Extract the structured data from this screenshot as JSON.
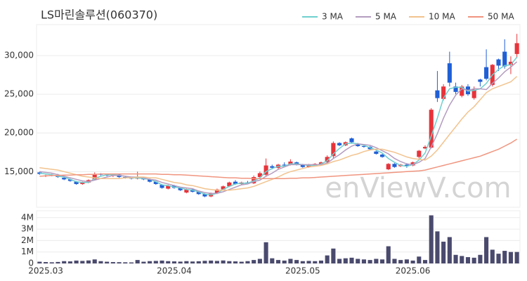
{
  "chart_data": {
    "type": "candlestick",
    "title": "LS마린솔루션(060370)",
    "watermark": "enViewV.com",
    "up_color": "#e8333a",
    "down_color": "#1f5fd6",
    "volume_color": "#4a4a6e",
    "grid": true,
    "legend": "top-right",
    "categories": [
      null,
      "2025.03",
      null,
      null,
      null,
      null,
      null,
      null,
      null,
      null,
      null,
      null,
      null,
      null,
      null,
      null,
      null,
      null,
      null,
      null,
      null,
      null,
      "2025.04",
      null,
      null,
      null,
      null,
      null,
      null,
      null,
      null,
      null,
      null,
      null,
      null,
      null,
      null,
      null,
      null,
      null,
      null,
      null,
      null,
      "2025.05",
      null,
      null,
      null,
      null,
      null,
      null,
      null,
      null,
      null,
      null,
      null,
      null,
      null,
      null,
      null,
      null,
      null,
      "2025.06",
      null,
      null,
      null,
      null,
      null,
      null,
      null,
      null,
      null,
      null,
      null,
      null,
      null,
      null,
      null,
      null,
      null
    ],
    "open": [
      14900,
      14400,
      14600,
      14500,
      14200,
      14000,
      13700,
      13400,
      13600,
      14000,
      14700,
      14600,
      14500,
      14600,
      14300,
      14200,
      14100,
      14200,
      14000,
      13700,
      13300,
      12800,
      13200,
      12900,
      12300,
      12700,
      12400,
      12100,
      11800,
      12200,
      12700,
      13100,
      13700,
      13400,
      13600,
      13500,
      14300,
      14600,
      15700,
      15500,
      15900,
      15900,
      16200,
      15900,
      15600,
      15900,
      16000,
      16200,
      17000,
      18700,
      18400,
      19300,
      18600,
      18300,
      18200,
      17600,
      17200,
      15300,
      16000,
      15700,
      15900,
      15800,
      16900,
      18000,
      18100,
      25500,
      24400,
      29000,
      26000,
      24800,
      26000,
      24500,
      26900,
      28500,
      26200,
      29500,
      30500,
      28800,
      30200
    ],
    "high": [
      15000,
      14600,
      14700,
      14700,
      14300,
      14100,
      13800,
      13700,
      14000,
      14900,
      14800,
      14700,
      14700,
      14700,
      14400,
      14300,
      15000,
      14300,
      14100,
      13800,
      13400,
      13300,
      13300,
      13000,
      12800,
      12800,
      12500,
      12200,
      12300,
      12800,
      13200,
      13700,
      13900,
      13700,
      13800,
      14500,
      15000,
      16700,
      15900,
      16000,
      16200,
      16600,
      16300,
      16000,
      16000,
      16100,
      16300,
      17100,
      18900,
      18800,
      18900,
      19400,
      18700,
      18500,
      18300,
      17700,
      17300,
      16100,
      16100,
      16000,
      16100,
      16300,
      17800,
      18400,
      23200,
      28000,
      26300,
      30500,
      26500,
      26200,
      26300,
      26000,
      27000,
      30800,
      28900,
      29600,
      32100,
      29900,
      32800
    ],
    "low": [
      14600,
      14300,
      14400,
      14200,
      13900,
      13700,
      13300,
      13300,
      13500,
      13900,
      14500,
      14400,
      14300,
      14200,
      14100,
      14000,
      14000,
      13900,
      13600,
      13300,
      12800,
      12700,
      12800,
      12500,
      12200,
      12300,
      12000,
      11700,
      11700,
      12100,
      12600,
      13000,
      13300,
      13300,
      13400,
      13400,
      14100,
      14400,
      15300,
      15300,
      15700,
      15800,
      15800,
      15500,
      15500,
      15700,
      15900,
      16000,
      16700,
      18300,
      18300,
      18600,
      18200,
      18100,
      17800,
      17200,
      16800,
      15200,
      15500,
      15600,
      15500,
      15700,
      16700,
      17900,
      18000,
      24000,
      24200,
      26000,
      25000,
      24600,
      24800,
      24300,
      26000,
      26800,
      26000,
      28000,
      28300,
      27600,
      29700
    ],
    "close": [
      14700,
      14500,
      14500,
      14300,
      14000,
      13800,
      13400,
      13600,
      13900,
      14700,
      14600,
      14500,
      14600,
      14300,
      14200,
      14100,
      14200,
      14000,
      13700,
      13400,
      12900,
      13200,
      12900,
      12600,
      12700,
      12400,
      12100,
      11800,
      12200,
      12700,
      13100,
      13600,
      13400,
      13600,
      13500,
      14300,
      14800,
      15800,
      15500,
      15900,
      15800,
      16300,
      15900,
      15600,
      15900,
      16000,
      16200,
      16900,
      18700,
      18400,
      18800,
      18800,
      18300,
      18200,
      17900,
      17300,
      16900,
      16000,
      15600,
      15900,
      15700,
      16200,
      17700,
      18200,
      23000,
      24500,
      26000,
      26500,
      25300,
      26000,
      25000,
      25600,
      26600,
      27000,
      28800,
      28700,
      28600,
      29200,
      31600
    ],
    "volume": [
      150000,
      120000,
      100000,
      130000,
      200000,
      180000,
      250000,
      220000,
      260000,
      350000,
      200000,
      150000,
      120000,
      110000,
      100000,
      90000,
      300000,
      150000,
      200000,
      220000,
      250000,
      200000,
      180000,
      160000,
      200000,
      170000,
      190000,
      230000,
      250000,
      220000,
      260000,
      200000,
      180000,
      150000,
      200000,
      300000,
      400000,
      1850000,
      450000,
      300000,
      250000,
      400000,
      300000,
      200000,
      220000,
      200000,
      250000,
      700000,
      1300000,
      400000,
      450000,
      500000,
      400000,
      350000,
      300000,
      400000,
      350000,
      1500000,
      400000,
      300000,
      350000,
      250000,
      600000,
      300000,
      4200000,
      2800000,
      1900000,
      2300000,
      750000,
      650000,
      550000,
      500000,
      750000,
      2300000,
      1200000,
      850000,
      1100000,
      1000000,
      1000000
    ],
    "series": [
      {
        "name": "3 MA",
        "color": "#6fcfcf",
        "values": [
          14800,
          14700,
          14600,
          14400,
          14300,
          14000,
          13700,
          13600,
          13600,
          14100,
          14400,
          14600,
          14600,
          14500,
          14400,
          14200,
          14200,
          14100,
          14000,
          13700,
          13300,
          13200,
          13000,
          12900,
          12700,
          12600,
          12400,
          12100,
          12000,
          12200,
          12700,
          13100,
          13400,
          13500,
          13500,
          13800,
          14200,
          15000,
          15400,
          15700,
          15700,
          16000,
          16000,
          15900,
          15800,
          15800,
          16000,
          16400,
          17300,
          18000,
          18600,
          18700,
          18600,
          18400,
          18100,
          17800,
          17400,
          16700,
          16200,
          15800,
          15700,
          15900,
          16500,
          17400,
          19600,
          21900,
          24500,
          25700,
          25900,
          25900,
          25400,
          25500,
          25700,
          26400,
          27500,
          28200,
          28700,
          28800,
          29800
        ]
      },
      {
        "name": "5 MA",
        "color": "#b49cc0",
        "values": [
          15000,
          14900,
          14800,
          14600,
          14400,
          14200,
          14000,
          13800,
          13700,
          13900,
          14100,
          14300,
          14500,
          14500,
          14400,
          14300,
          14300,
          14200,
          14000,
          13900,
          13600,
          13400,
          13200,
          13000,
          12900,
          12800,
          12500,
          12300,
          12200,
          12200,
          12400,
          12700,
          13000,
          13300,
          13400,
          13700,
          13900,
          14400,
          14800,
          15300,
          15600,
          15900,
          15900,
          15900,
          15900,
          15900,
          15900,
          16100,
          16700,
          17200,
          17800,
          18300,
          18600,
          18500,
          18400,
          18100,
          17700,
          17300,
          16700,
          16300,
          16000,
          15900,
          16200,
          16700,
          18200,
          19900,
          21900,
          23600,
          24900,
          25700,
          25500,
          25700,
          25700,
          25600,
          26400,
          27100,
          27900,
          28500,
          29200
        ]
      },
      {
        "name": "10 MA",
        "color": "#f2c38e",
        "values": [
          15500,
          15400,
          15300,
          15200,
          15000,
          14800,
          14600,
          14400,
          14300,
          14200,
          14100,
          14100,
          14100,
          14100,
          14200,
          14200,
          14300,
          14300,
          14200,
          14200,
          14000,
          13800,
          13600,
          13500,
          13300,
          13200,
          13000,
          12800,
          12700,
          12600,
          12600,
          12600,
          12700,
          12800,
          12900,
          13100,
          13400,
          13700,
          14000,
          14300,
          14700,
          15000,
          15200,
          15400,
          15600,
          15700,
          15800,
          16000,
          16300,
          16500,
          16800,
          17100,
          17300,
          17600,
          17800,
          17900,
          17900,
          17700,
          17500,
          17200,
          16900,
          16700,
          16600,
          16500,
          17000,
          17800,
          18800,
          19800,
          20800,
          21800,
          22700,
          23400,
          24300,
          25200,
          25700,
          26000,
          26300,
          26600,
          27300
        ]
      },
      {
        "name": "50 MA",
        "color": "#f0957f",
        "values": [
          14400,
          14450,
          14500,
          14500,
          14550,
          14550,
          14600,
          14600,
          14650,
          14650,
          14700,
          14700,
          14700,
          14700,
          14700,
          14700,
          14700,
          14700,
          14700,
          14700,
          14650,
          14650,
          14600,
          14600,
          14550,
          14500,
          14450,
          14400,
          14350,
          14300,
          14250,
          14200,
          14200,
          14150,
          14150,
          14100,
          14100,
          14100,
          14100,
          14100,
          14100,
          14150,
          14150,
          14200,
          14200,
          14250,
          14300,
          14350,
          14400,
          14450,
          14500,
          14550,
          14600,
          14650,
          14700,
          14750,
          14800,
          14850,
          14900,
          14950,
          15000,
          15050,
          15100,
          15200,
          15400,
          15600,
          15800,
          16000,
          16200,
          16400,
          16600,
          16800,
          17000,
          17300,
          17600,
          17900,
          18300,
          18700,
          19200
        ]
      }
    ],
    "ylim": [
      10400,
      34000
    ],
    "yticks": [
      {
        "value": 15000,
        "label": "15,000"
      },
      {
        "value": 20000,
        "label": "20,000"
      },
      {
        "value": 25000,
        "label": "25,000"
      },
      {
        "value": 30000,
        "label": "30,000"
      }
    ],
    "volume_ylim": [
      0,
      4600000
    ],
    "volume_ticks": [
      0,
      {
        "value": 1000000,
        "label": "1M"
      },
      {
        "value": 2000000,
        "label": "2M"
      },
      {
        "value": 3000000,
        "label": "3M"
      },
      {
        "value": 4000000,
        "label": "4M"
      }
    ]
  }
}
